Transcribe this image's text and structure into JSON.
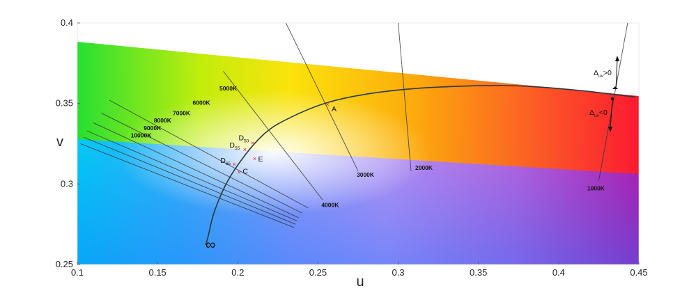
{
  "chart_data": {
    "type": "line",
    "title": "",
    "xlabel": "u",
    "ylabel": "v",
    "xlim": [
      0.1,
      0.45
    ],
    "ylim": [
      0.25,
      0.4
    ],
    "xticks": [
      0.1,
      0.15,
      0.2,
      0.25,
      0.3,
      0.35,
      0.4,
      0.45
    ],
    "yticks": [
      0.25,
      0.3,
      0.35,
      0.4
    ],
    "grid": false,
    "planckian_locus": {
      "x": [
        0.448,
        0.431,
        0.415,
        0.38,
        0.35,
        0.32,
        0.3,
        0.28,
        0.26,
        0.245,
        0.23,
        0.22,
        0.21,
        0.2,
        0.193,
        0.188,
        0.184,
        0.182,
        0.18
      ],
      "y": [
        0.354,
        0.356,
        0.358,
        0.361,
        0.3612,
        0.36,
        0.3585,
        0.356,
        0.352,
        0.347,
        0.34,
        0.3345,
        0.325,
        0.312,
        0.301,
        0.29,
        0.279,
        0.269,
        0.262
      ]
    },
    "isotherms": [
      {
        "label": "1000K",
        "x": [
          0.443,
          0.425
        ],
        "y": [
          0.4,
          0.302
        ]
      },
      {
        "label": "2000K",
        "x": [
          0.3,
          0.308
        ],
        "y": [
          0.4,
          0.308
        ]
      },
      {
        "label": "3000K",
        "x": [
          0.23,
          0.275
        ],
        "y": [
          0.4,
          0.308
        ]
      },
      {
        "label": "4000K",
        "x": [
          0.191,
          0.253
        ],
        "y": [
          0.37,
          0.29
        ]
      },
      {
        "label": "5000K",
        "x": [
          0.12,
          0.244
        ],
        "y": [
          0.352,
          0.285
        ]
      },
      {
        "label": "6000K",
        "x": [
          0.115,
          0.24
        ],
        "y": [
          0.344,
          0.282
        ]
      },
      {
        "label": "7000K",
        "x": [
          0.11,
          0.238
        ],
        "y": [
          0.338,
          0.279
        ]
      },
      {
        "label": "8000K",
        "x": [
          0.106,
          0.237
        ],
        "y": [
          0.333,
          0.277
        ]
      },
      {
        "label": "9000K",
        "x": [
          0.104,
          0.236
        ],
        "y": [
          0.329,
          0.275
        ]
      },
      {
        "label": "10000K",
        "x": [
          0.102,
          0.235
        ],
        "y": [
          0.325,
          0.273
        ]
      }
    ],
    "points": [
      {
        "name": "A",
        "label": "A",
        "x": 0.2559,
        "y": 0.3495
      },
      {
        "name": "D50",
        "label": "D",
        "sub": "50",
        "x": 0.2092,
        "y": 0.3254
      },
      {
        "name": "D55",
        "label": "D",
        "sub": "55",
        "x": 0.2044,
        "y": 0.3214
      },
      {
        "name": "D65",
        "label": "D",
        "sub": "65",
        "x": 0.1978,
        "y": 0.3122
      },
      {
        "name": "E",
        "label": "E",
        "x": 0.2105,
        "y": 0.3158
      },
      {
        "name": "C",
        "label": "C",
        "x": 0.2009,
        "y": 0.3073
      }
    ],
    "annotations": {
      "infinity": "∞",
      "duv_positive": {
        "text": "Δ",
        "sub": "uv",
        "suffix": ">0"
      },
      "duv_negative": {
        "text": "Δ",
        "sub": "uv",
        "suffix": "<0"
      }
    },
    "colors": {
      "locus": "#2a3a3a",
      "point_marker": "#e02020",
      "isotherm": "#333333"
    }
  }
}
